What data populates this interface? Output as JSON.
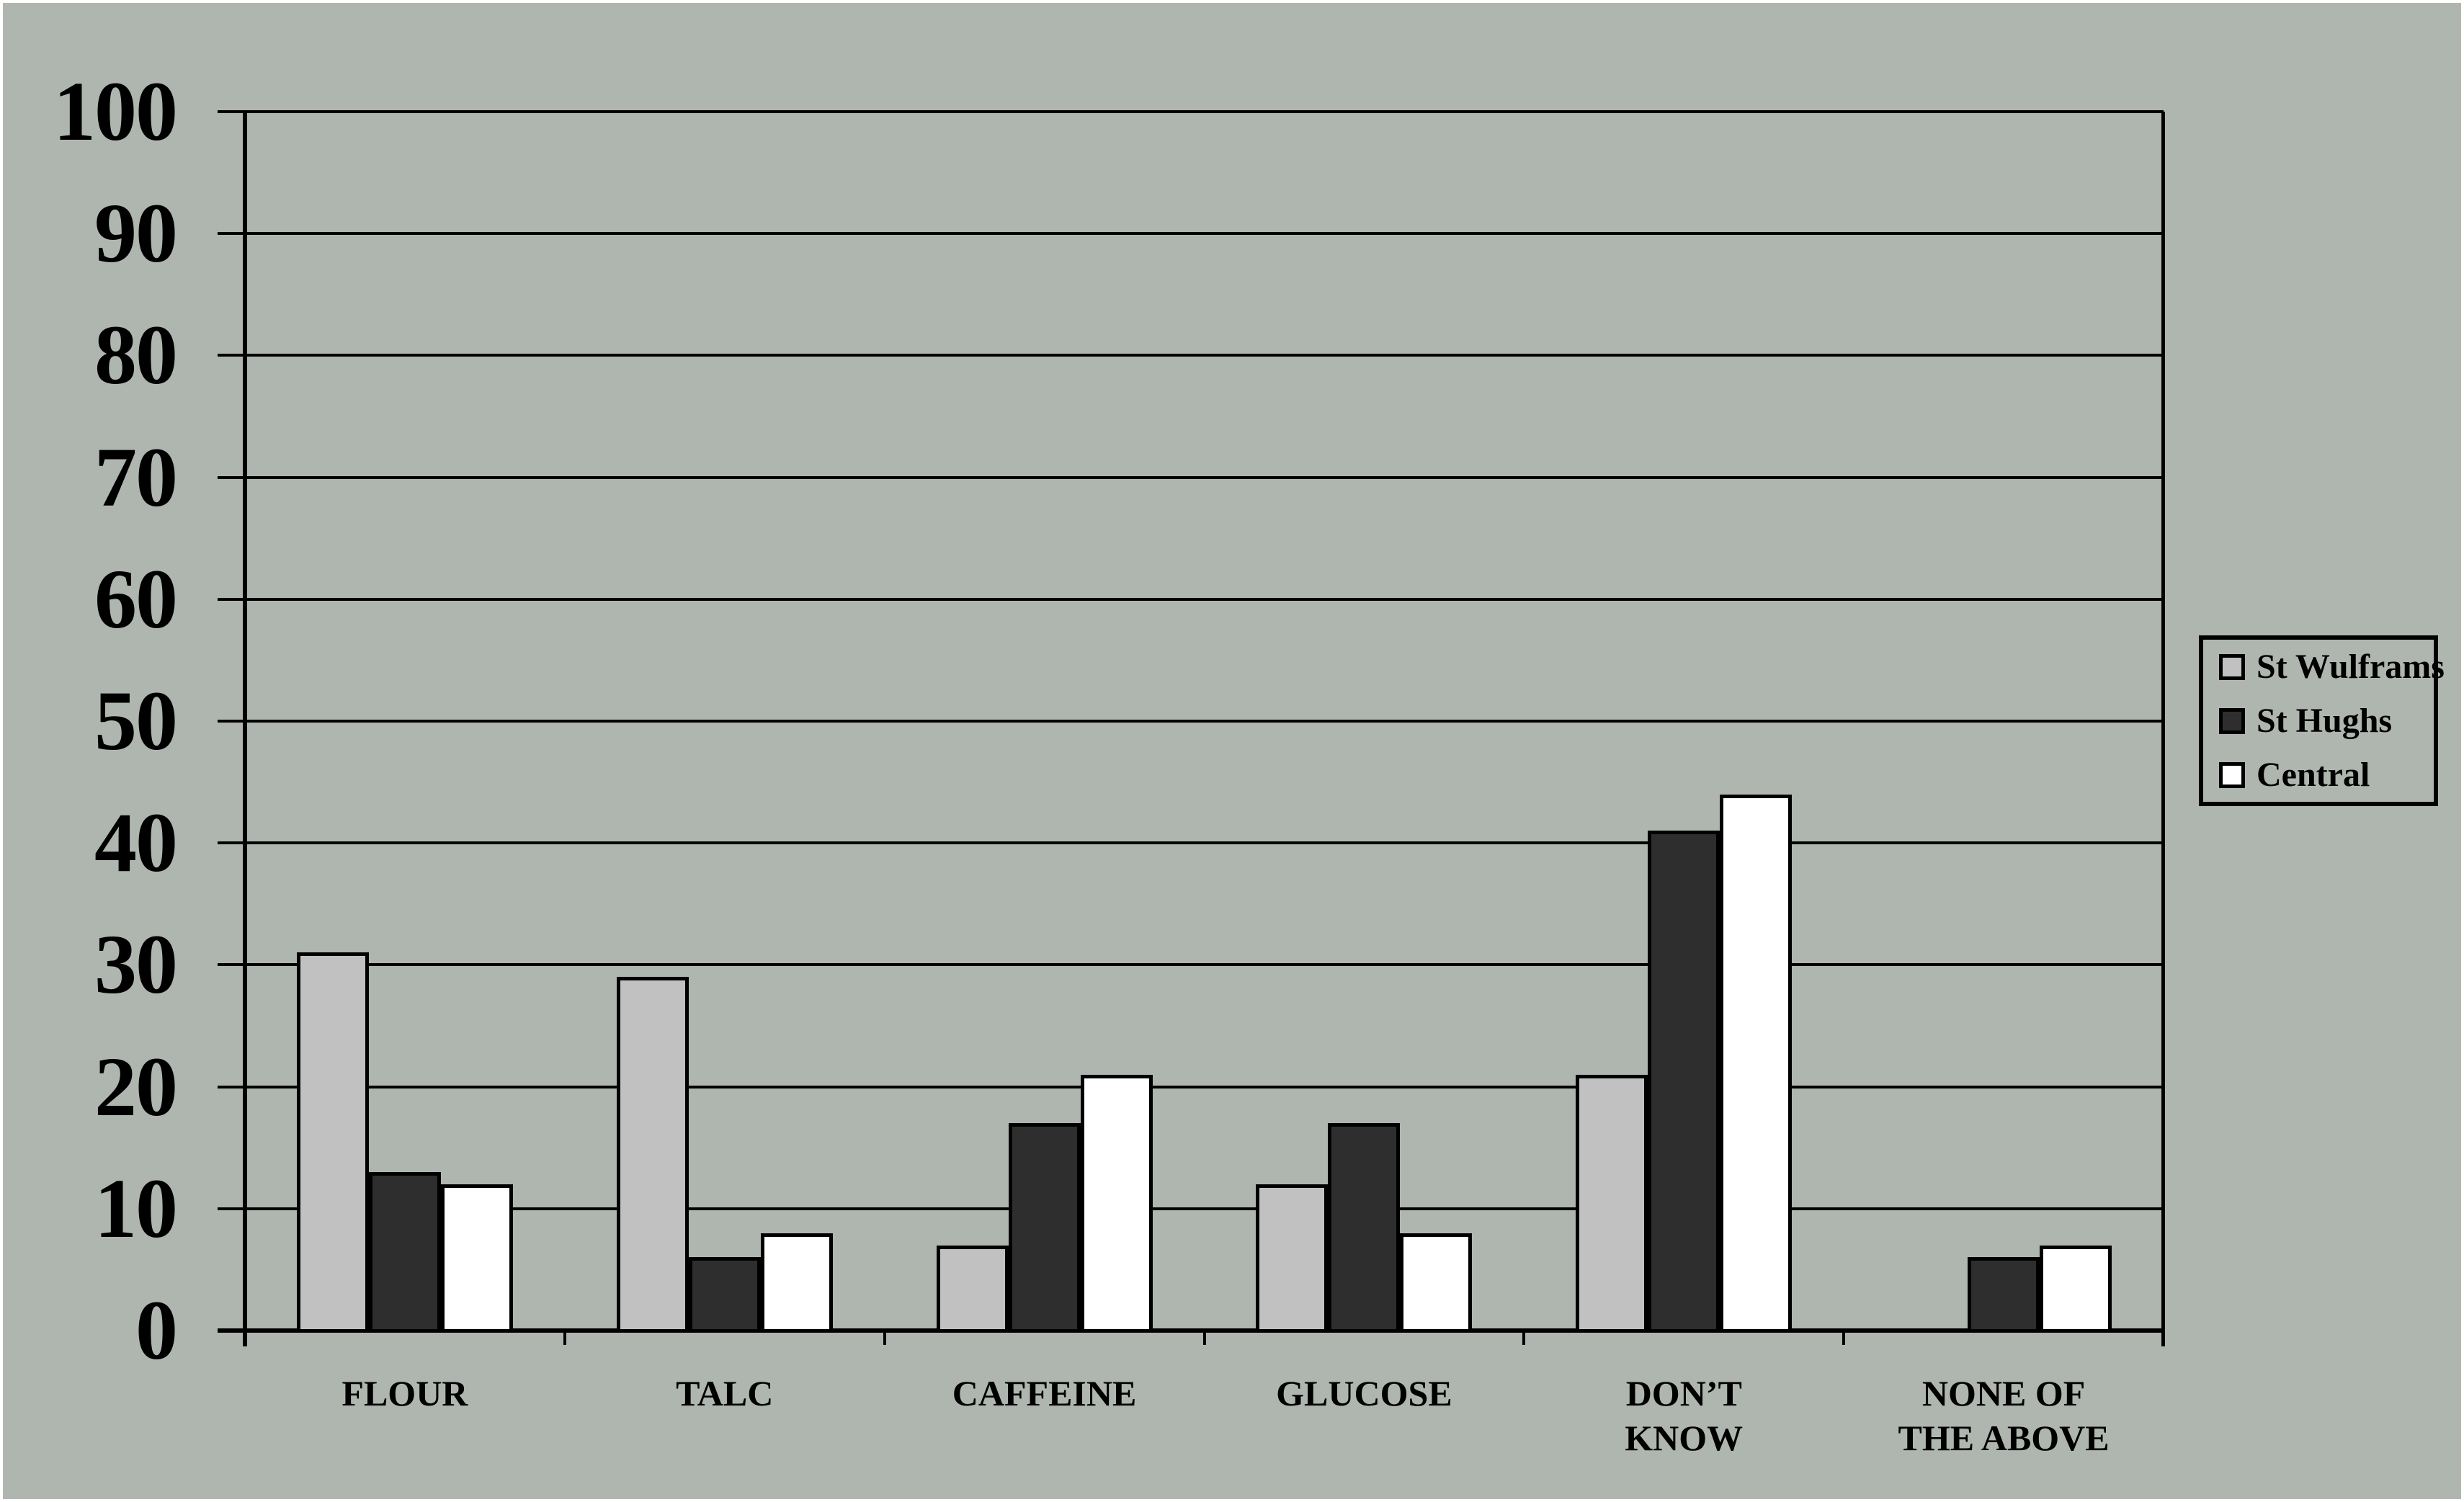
{
  "page": {
    "background_color": "#afb6af",
    "frame_color": "#ffffff",
    "line_color": "#000000"
  },
  "chart_data": {
    "type": "bar",
    "categories": [
      "FLOUR",
      "TALC",
      "CAFFEINE",
      "GLUCOSE",
      "DON’T KNOW",
      "NONE OF THE ABOVE"
    ],
    "series": [
      {
        "name": "St Wulframs",
        "color": "#c1c1c1",
        "values": [
          31,
          29,
          7,
          12,
          21,
          0
        ]
      },
      {
        "name": "St Hughs",
        "color": "#2e2e2e",
        "values": [
          13,
          6,
          17,
          17,
          41,
          6
        ]
      },
      {
        "name": "Central",
        "color": "#ffffff",
        "values": [
          12,
          8,
          21,
          8,
          44,
          7
        ]
      }
    ],
    "title": "",
    "xlabel": "",
    "ylabel": "",
    "ylim": [
      0,
      100
    ],
    "yticks": [
      0,
      10,
      20,
      30,
      40,
      50,
      60,
      70,
      80,
      90,
      100
    ],
    "grid": true,
    "legend_position": "right"
  }
}
